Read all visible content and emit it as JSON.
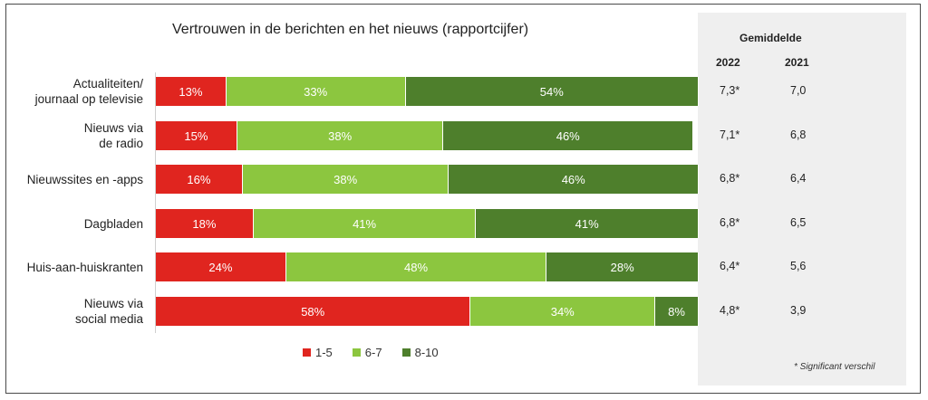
{
  "chart_data": {
    "type": "bar",
    "stacked": true,
    "orientation": "horizontal",
    "title": "Vertrouwen in de berichten en het nieuws (rapportcijfer)",
    "categories": [
      [
        "Actualiteiten/",
        "journaal op televisie"
      ],
      [
        "Nieuws via",
        "de radio"
      ],
      [
        "Nieuwssites en -apps"
      ],
      [
        "Dagbladen"
      ],
      [
        "Huis-aan-huiskranten"
      ],
      [
        "Nieuws via",
        "social media"
      ]
    ],
    "series": [
      {
        "name": "1-5",
        "color": "#e0251f",
        "values": [
          13,
          15,
          16,
          18,
          24,
          58
        ]
      },
      {
        "name": "6-7",
        "color": "#8cc63f",
        "values": [
          33,
          38,
          38,
          41,
          48,
          34
        ]
      },
      {
        "name": "8-10",
        "color": "#4e7f2c",
        "values": [
          54,
          46,
          46,
          41,
          28,
          8
        ]
      }
    ],
    "xlim": [
      0,
      100
    ],
    "averages": {
      "header": "Gemiddelde",
      "years": [
        "2022",
        "2021"
      ],
      "values_2022": [
        "7,3*",
        "7,1*",
        "6,8*",
        "6,8*",
        "6,4*",
        "4,8*"
      ],
      "values_2021": [
        "7,0",
        "6,8",
        "6,4",
        "6,5",
        "5,6",
        "3,9"
      ]
    },
    "legend_position": "bottom",
    "footnote": "* Significant verschil"
  }
}
